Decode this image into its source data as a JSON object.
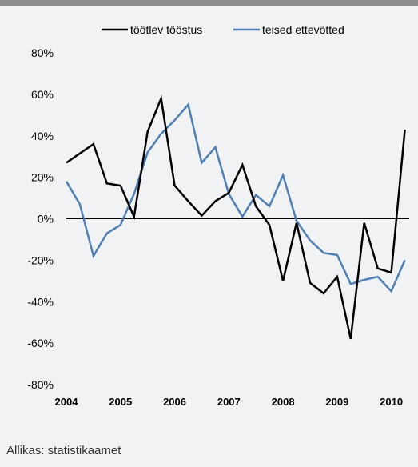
{
  "source": "Allikas: statistikaamet",
  "chart_data": {
    "type": "line",
    "title": "",
    "xlabel": "",
    "ylabel": "",
    "ylim": [
      -80,
      80
    ],
    "xlim": [
      2004,
      2010.33
    ],
    "x_ticks": [
      "2004",
      "2005",
      "2006",
      "2007",
      "2008",
      "2009",
      "2010"
    ],
    "y_ticks": [
      "80%",
      "60%",
      "40%",
      "20%",
      "0%",
      "-20%",
      "-40%",
      "-60%",
      "-80%"
    ],
    "grid": false,
    "legend_position": "top",
    "series": [
      {
        "name": "töötlev tööstus",
        "color": "#000000",
        "x": [
          2004.0,
          2004.25,
          2004.5,
          2004.75,
          2005.0,
          2005.25,
          2005.5,
          2005.75,
          2006.0,
          2006.25,
          2006.5,
          2006.75,
          2007.0,
          2007.25,
          2007.5,
          2007.75,
          2008.0,
          2008.25,
          2008.5,
          2008.75,
          2009.0,
          2009.25,
          2009.5,
          2009.75,
          2010.0,
          2010.25
        ],
        "y": [
          27,
          31.5,
          36,
          17,
          16,
          1,
          42,
          58,
          16,
          8.5,
          1.5,
          8.5,
          12.5,
          26,
          6,
          -3,
          -30,
          -2,
          -31,
          -36,
          -28,
          -58,
          -2,
          -24,
          -26,
          43
        ]
      },
      {
        "name": "teised ettevõtted",
        "color": "#4f7fb5",
        "x": [
          2004.0,
          2004.25,
          2004.5,
          2004.75,
          2005.0,
          2005.25,
          2005.5,
          2005.75,
          2006.0,
          2006.25,
          2006.5,
          2006.75,
          2007.0,
          2007.25,
          2007.5,
          2007.75,
          2008.0,
          2008.25,
          2008.5,
          2008.75,
          2009.0,
          2009.25,
          2009.5,
          2009.75,
          2010.0,
          2010.25
        ],
        "y": [
          18,
          7,
          -18,
          -7,
          -3,
          12,
          32,
          41,
          47.5,
          55,
          27,
          34.5,
          12,
          1,
          11.5,
          6,
          21,
          -1,
          -10.5,
          -16.5,
          -17.5,
          -31.5,
          -29.5,
          -28,
          -35,
          -20
        ]
      }
    ]
  }
}
